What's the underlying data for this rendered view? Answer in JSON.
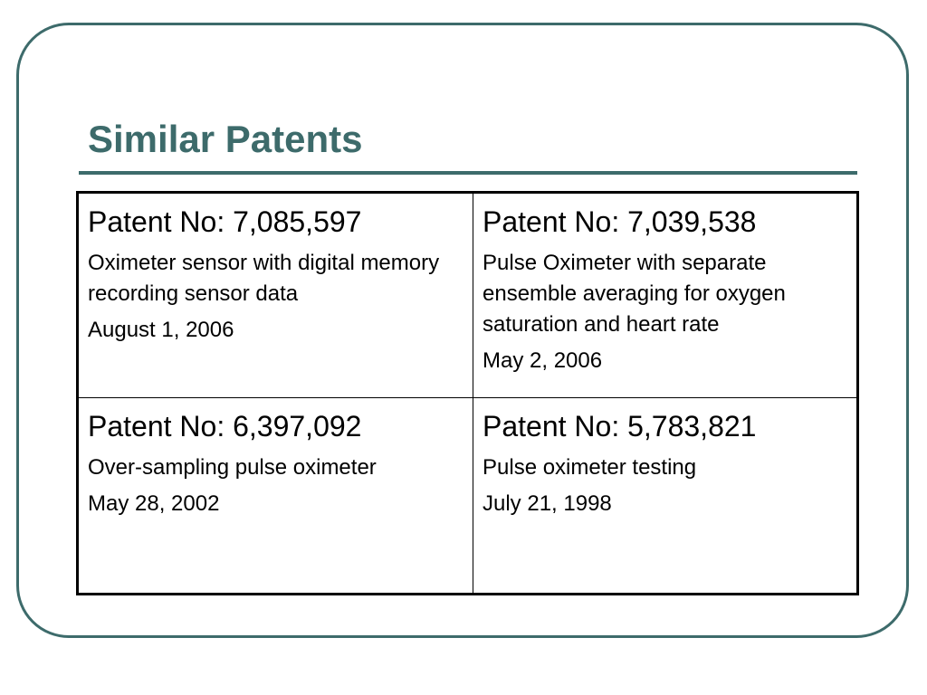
{
  "slide": {
    "title": "Similar Patents"
  },
  "patents": [
    {
      "number": "Patent No: 7,085,597",
      "description": "Oximeter sensor with digital memory recording sensor data",
      "date": "August 1, 2006"
    },
    {
      "number": "Patent No: 7,039,538",
      "description": "Pulse Oximeter with separate ensemble averaging for oxygen saturation and heart rate",
      "date": "May 2, 2006"
    },
    {
      "number": "Patent No: 6,397,092",
      "description": "Over-sampling pulse oximeter",
      "date": "May 28, 2002"
    },
    {
      "number": "Patent No: 5,783,821",
      "description": "Pulse oximeter testing",
      "date": "July 21, 1998"
    }
  ],
  "colors": {
    "accent": "#3d6b6b",
    "text": "#000000",
    "background": "#ffffff"
  }
}
